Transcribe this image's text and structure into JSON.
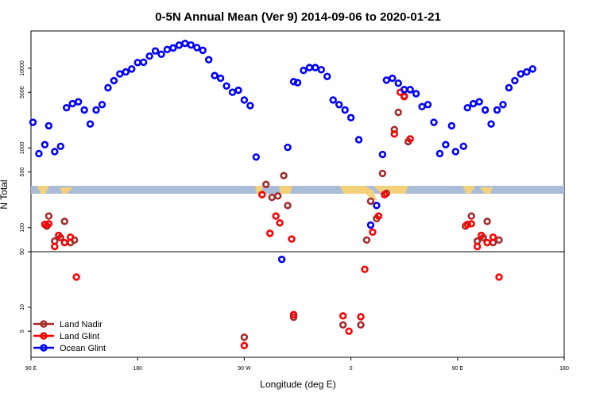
{
  "chart_data": {
    "type": "scatter",
    "title": "0-5N Annual Mean (Ver 9)   2014-09-06 to 2020-01-21",
    "xlabel": "Longitude (deg E)",
    "ylabel": "N Total",
    "x_axis": {
      "range": [
        -90,
        180
      ],
      "ticks": [
        {
          "label": "90 E",
          "value": -90
        },
        {
          "label": "180",
          "value": -36
        },
        {
          "label": "90 W",
          "value": 18
        },
        {
          "label": "0",
          "value": 72
        },
        {
          "label": "90 E",
          "value": 126
        },
        {
          "label": "180",
          "value": 180
        }
      ]
    },
    "y_axis": {
      "scale": "log-split",
      "upper_range": [
        50,
        30000
      ],
      "lower_range": [
        2.5,
        50
      ],
      "split_at": 50,
      "ticks": [
        {
          "label": "10000",
          "value": 10000
        },
        {
          "label": "5000",
          "value": 5000
        },
        {
          "label": "1000",
          "value": 1000
        },
        {
          "label": "500",
          "value": 500
        },
        {
          "label": "100",
          "value": 100
        },
        {
          "label": "50",
          "value": 50
        },
        {
          "label": "10",
          "value": 10
        },
        {
          "label": "5",
          "value": 5
        }
      ]
    },
    "legend": {
      "position": "bottom-left",
      "entries": [
        {
          "label": "Land Nadir",
          "color": "#a52a2a"
        },
        {
          "label": "Land Glint",
          "color": "#ff0000"
        },
        {
          "label": "Ocean Glint",
          "color": "#0000ff"
        }
      ]
    },
    "map_strip": {
      "ocean_color": "#a8bcd8",
      "land_color": "#f5d07a"
    },
    "series": [
      {
        "name": "Land Nadir",
        "color": "#a52a2a",
        "points": [
          {
            "x": -82,
            "y": 105
          },
          {
            "x": -82,
            "y": 105
          },
          {
            "x": -82,
            "y": 105
          },
          {
            "x": -82,
            "y": 105
          },
          {
            "x": -81,
            "y": 140
          },
          {
            "x": -78,
            "y": 68
          },
          {
            "x": -75,
            "y": 75
          },
          {
            "x": -73,
            "y": 120
          },
          {
            "x": -70,
            "y": 65
          },
          {
            "x": -68,
            "y": 70
          },
          {
            "x": 29,
            "y": 350
          },
          {
            "x": 32,
            "y": 240
          },
          {
            "x": 35,
            "y": 250
          },
          {
            "x": 38,
            "y": 450
          },
          {
            "x": 40,
            "y": 190
          },
          {
            "x": 43,
            "y": 7.5
          },
          {
            "x": 18,
            "y": 4.2
          },
          {
            "x": 68,
            "y": 6
          },
          {
            "x": 77,
            "y": 6
          },
          {
            "x": 80,
            "y": 70
          },
          {
            "x": 82,
            "y": 215
          },
          {
            "x": 85,
            "y": 130
          },
          {
            "x": 88,
            "y": 480
          },
          {
            "x": 90,
            "y": 270
          },
          {
            "x": 94,
            "y": 1700
          },
          {
            "x": 96,
            "y": 2800
          },
          {
            "x": 99,
            "y": 4500
          },
          {
            "x": 101,
            "y": 1200
          },
          {
            "x": 130,
            "y": 105
          },
          {
            "x": 133,
            "y": 140
          },
          {
            "x": 136,
            "y": 68
          },
          {
            "x": 139,
            "y": 75
          },
          {
            "x": 141,
            "y": 120
          },
          {
            "x": 144,
            "y": 65
          },
          {
            "x": 147,
            "y": 70
          }
        ]
      },
      {
        "name": "Land Glint",
        "color": "#ff0000",
        "points": [
          {
            "x": -83,
            "y": 110
          },
          {
            "x": -81,
            "y": 112
          },
          {
            "x": -78,
            "y": 58
          },
          {
            "x": -76,
            "y": 80
          },
          {
            "x": -73,
            "y": 65
          },
          {
            "x": -70,
            "y": 76
          },
          {
            "x": -67,
            "y": 24
          },
          {
            "x": 18,
            "y": 3.3
          },
          {
            "x": 27,
            "y": 260
          },
          {
            "x": 31,
            "y": 85
          },
          {
            "x": 34,
            "y": 140
          },
          {
            "x": 36,
            "y": 115
          },
          {
            "x": 42,
            "y": 72
          },
          {
            "x": 43,
            "y": 8.1
          },
          {
            "x": 68,
            "y": 7.8
          },
          {
            "x": 71,
            "y": 5
          },
          {
            "x": 77,
            "y": 7.6
          },
          {
            "x": 79,
            "y": 30
          },
          {
            "x": 83,
            "y": 88
          },
          {
            "x": 86,
            "y": 140
          },
          {
            "x": 89,
            "y": 260
          },
          {
            "x": 94,
            "y": 1500
          },
          {
            "x": 97,
            "y": 5000
          },
          {
            "x": 99,
            "y": 4400
          },
          {
            "x": 102,
            "y": 1300
          },
          {
            "x": 131,
            "y": 110
          },
          {
            "x": 133,
            "y": 112
          },
          {
            "x": 136,
            "y": 58
          },
          {
            "x": 138,
            "y": 80
          },
          {
            "x": 141,
            "y": 65
          },
          {
            "x": 144,
            "y": 76
          },
          {
            "x": 147,
            "y": 24
          }
        ]
      },
      {
        "name": "Ocean Glint",
        "color": "#0000ff",
        "points": [
          {
            "x": -89,
            "y": 2100
          },
          {
            "x": -86,
            "y": 850
          },
          {
            "x": -83,
            "y": 1100
          },
          {
            "x": -81,
            "y": 1900
          },
          {
            "x": -78,
            "y": 900
          },
          {
            "x": -75,
            "y": 1050
          },
          {
            "x": -72,
            "y": 3200
          },
          {
            "x": -69,
            "y": 3600
          },
          {
            "x": -66,
            "y": 3800
          },
          {
            "x": -63,
            "y": 3000
          },
          {
            "x": -60,
            "y": 2000
          },
          {
            "x": -57,
            "y": 3000
          },
          {
            "x": -54,
            "y": 3500
          },
          {
            "x": -51,
            "y": 5700
          },
          {
            "x": -48,
            "y": 7000
          },
          {
            "x": -45,
            "y": 8500
          },
          {
            "x": -42,
            "y": 9000
          },
          {
            "x": -39,
            "y": 9800
          },
          {
            "x": -36,
            "y": 11800
          },
          {
            "x": -33,
            "y": 11900
          },
          {
            "x": -30,
            "y": 14200
          },
          {
            "x": -27,
            "y": 16500
          },
          {
            "x": -24,
            "y": 15000
          },
          {
            "x": -21,
            "y": 17200
          },
          {
            "x": -18,
            "y": 18000
          },
          {
            "x": -15,
            "y": 19500
          },
          {
            "x": -12,
            "y": 20500
          },
          {
            "x": -9,
            "y": 19600
          },
          {
            "x": -6,
            "y": 18200
          },
          {
            "x": -3,
            "y": 16800
          },
          {
            "x": 0,
            "y": 12800
          },
          {
            "x": 3,
            "y": 8100
          },
          {
            "x": 6,
            "y": 7500
          },
          {
            "x": 9,
            "y": 6000
          },
          {
            "x": 12,
            "y": 5000
          },
          {
            "x": 15,
            "y": 5300
          },
          {
            "x": 18,
            "y": 4000
          },
          {
            "x": 21,
            "y": 3400
          },
          {
            "x": 24,
            "y": 770
          },
          {
            "x": 37,
            "y": 40
          },
          {
            "x": 40,
            "y": 1020
          },
          {
            "x": 43,
            "y": 6800
          },
          {
            "x": 45,
            "y": 6600
          },
          {
            "x": 48,
            "y": 9400
          },
          {
            "x": 51,
            "y": 10200
          },
          {
            "x": 54,
            "y": 10200
          },
          {
            "x": 57,
            "y": 9600
          },
          {
            "x": 60,
            "y": 7900
          },
          {
            "x": 63,
            "y": 4000
          },
          {
            "x": 66,
            "y": 3500
          },
          {
            "x": 69,
            "y": 3000
          },
          {
            "x": 72,
            "y": 2400
          },
          {
            "x": 76,
            "y": 1270
          },
          {
            "x": 82,
            "y": 108
          },
          {
            "x": 85,
            "y": 190
          },
          {
            "x": 88,
            "y": 830
          },
          {
            "x": 90,
            "y": 7100
          },
          {
            "x": 93,
            "y": 7500
          },
          {
            "x": 96,
            "y": 6500
          },
          {
            "x": 99,
            "y": 5400
          },
          {
            "x": 102,
            "y": 5400
          },
          {
            "x": 105,
            "y": 4800
          },
          {
            "x": 108,
            "y": 3300
          },
          {
            "x": 111,
            "y": 3500
          },
          {
            "x": 114,
            "y": 2100
          },
          {
            "x": 117,
            "y": 850
          },
          {
            "x": 120,
            "y": 1100
          },
          {
            "x": 123,
            "y": 1900
          },
          {
            "x": 125,
            "y": 900
          },
          {
            "x": 129,
            "y": 1050
          },
          {
            "x": 131,
            "y": 3200
          },
          {
            "x": 134,
            "y": 3600
          },
          {
            "x": 137,
            "y": 3800
          },
          {
            "x": 140,
            "y": 3000
          },
          {
            "x": 143,
            "y": 2000
          },
          {
            "x": 146,
            "y": 3000
          },
          {
            "x": 149,
            "y": 3500
          },
          {
            "x": 152,
            "y": 5700
          },
          {
            "x": 155,
            "y": 7000
          },
          {
            "x": 158,
            "y": 8500
          },
          {
            "x": 161,
            "y": 9000
          },
          {
            "x": 164,
            "y": 9800
          }
        ]
      }
    ]
  }
}
